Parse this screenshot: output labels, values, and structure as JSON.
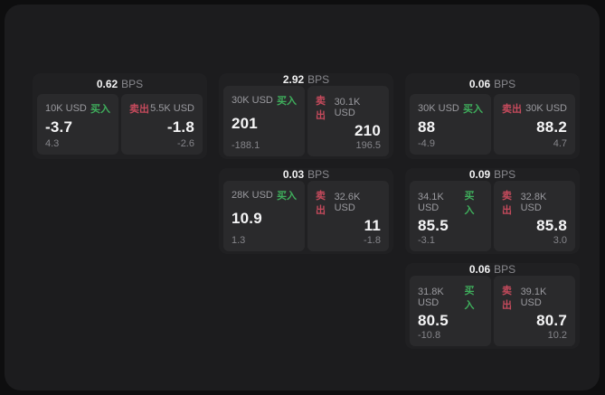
{
  "labels": {
    "bps_unit": "BPS",
    "buy": "买入",
    "sell": "卖出"
  },
  "colors": {
    "buy_green": "#3fae5c",
    "sell_red": "#c54a5c",
    "panel_bg": "#1c1c1e",
    "card_bg": "#202022",
    "tile_bg": "#2a2a2c"
  },
  "cards": [
    {
      "bps": "0.62",
      "buy": {
        "amount": "10K USD",
        "value": "-3.7",
        "sub": "4.3"
      },
      "sell": {
        "amount": "5.5K USD",
        "value": "-1.8",
        "sub": "-2.6"
      }
    },
    {
      "bps": "2.92",
      "buy": {
        "amount": "30K USD",
        "value": "201",
        "sub": "-188.1"
      },
      "sell": {
        "amount": "30.1K USD",
        "value": "210",
        "sub": "196.5"
      }
    },
    {
      "bps": "0.06",
      "buy": {
        "amount": "30K USD",
        "value": "88",
        "sub": "-4.9"
      },
      "sell": {
        "amount": "30K USD",
        "value": "88.2",
        "sub": "4.7"
      }
    },
    {
      "bps": "0.03",
      "buy": {
        "amount": "28K USD",
        "value": "10.9",
        "sub": "1.3"
      },
      "sell": {
        "amount": "32.6K USD",
        "value": "11",
        "sub": "-1.8"
      }
    },
    {
      "bps": "0.09",
      "buy": {
        "amount": "34.1K USD",
        "value": "85.5",
        "sub": "-3.1"
      },
      "sell": {
        "amount": "32.8K USD",
        "value": "85.8",
        "sub": "3.0"
      }
    },
    {
      "bps": "0.06",
      "buy": {
        "amount": "31.8K USD",
        "value": "80.5",
        "sub": "-10.8"
      },
      "sell": {
        "amount": "39.1K USD",
        "value": "80.7",
        "sub": "10.2"
      }
    }
  ]
}
